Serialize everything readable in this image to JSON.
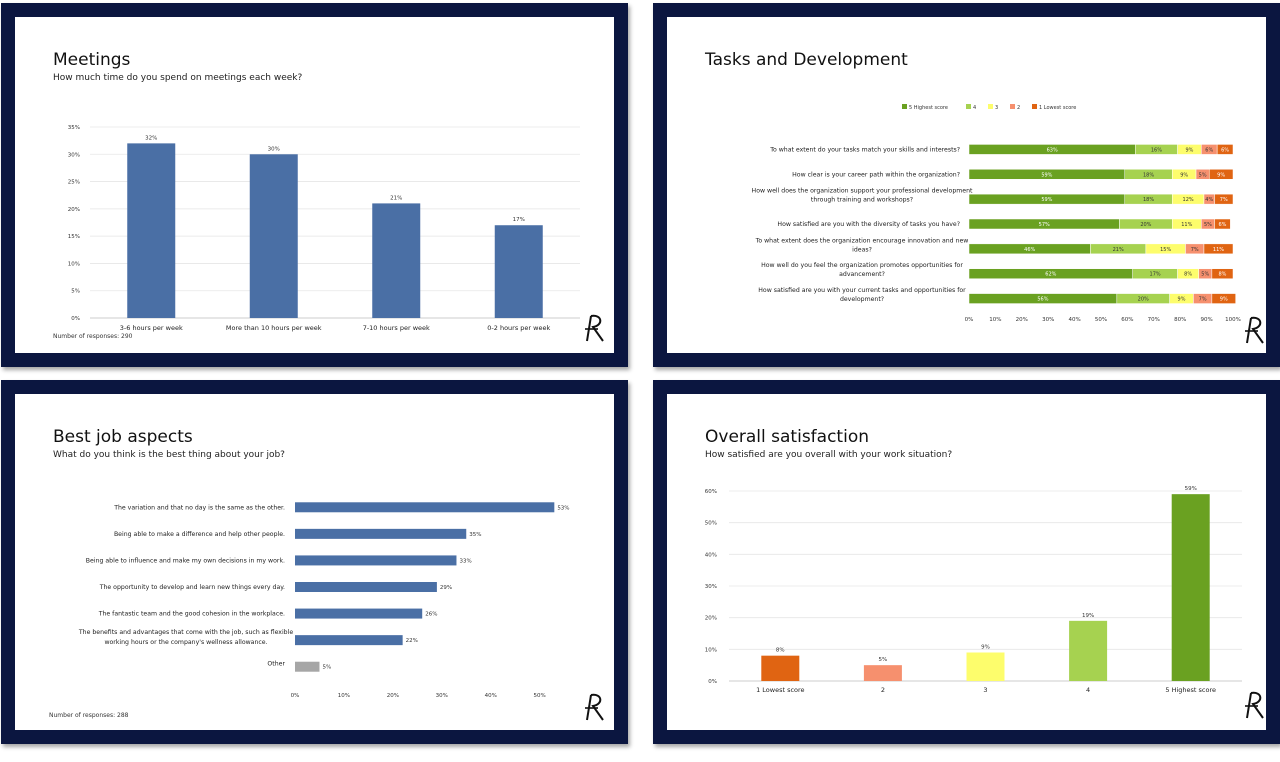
{
  "colors": {
    "navy": "#0b1640",
    "bar_blue": "#4a6fa5",
    "other_gray": "#a6a6a6",
    "score5": "#6aa121",
    "score4": "#a6d250",
    "score3": "#fdfd6c",
    "score2": "#f6906e",
    "score1": "#e06412"
  },
  "logo_icon": "ar-monogram-icon",
  "panels": {
    "meetings": {
      "title": "Meetings",
      "subtitle": "How much time do you spend on meetings each week?",
      "note": "Number of responses: 290"
    },
    "tasks": {
      "title": "Tasks and Development"
    },
    "best": {
      "title": "Best job aspects",
      "subtitle": "What do you think is the best thing about your job?",
      "note": "Number of responses: 288"
    },
    "overall": {
      "title": "Overall satisfaction",
      "subtitle": "How satisfied are you overall with your work situation?"
    }
  },
  "chart_data": [
    {
      "id": "meetings",
      "type": "bar",
      "title": "Meetings",
      "categories": [
        "3-6 hours per week",
        "More than 10 hours per week",
        "7-10 hours per week",
        "0-2 hours per week"
      ],
      "values": [
        32,
        30,
        21,
        17
      ],
      "labels": [
        "32%",
        "30%",
        "21%",
        "17%"
      ],
      "yticks": [
        "0%",
        "5%",
        "10%",
        "15%",
        "20%",
        "25%",
        "30%",
        "35%"
      ],
      "ylim": [
        0,
        35
      ],
      "grid": true
    },
    {
      "id": "tasks",
      "type": "bar",
      "orientation": "horizontal-stacked",
      "title": "Tasks and Development",
      "legend_position": "top",
      "series": [
        {
          "name": "5 Highest score",
          "values": [
            63,
            59,
            59,
            57,
            46,
            62,
            56
          ]
        },
        {
          "name": "4",
          "values": [
            16,
            18,
            18,
            20,
            21,
            17,
            20
          ]
        },
        {
          "name": "3",
          "values": [
            9,
            9,
            12,
            11,
            15,
            8,
            9
          ]
        },
        {
          "name": "2",
          "values": [
            6,
            5,
            4,
            5,
            7,
            5,
            7
          ]
        },
        {
          "name": "1 Lowest score",
          "values": [
            6,
            9,
            7,
            6,
            11,
            8,
            9
          ]
        }
      ],
      "categories": [
        [
          "To what extent do your tasks match your skills and interests?"
        ],
        [
          "How clear is your career path within the organization?"
        ],
        [
          "How well does the organization support your professional development",
          "through training and workshops?"
        ],
        [
          "How satisfied are you with the diversity of tasks you have?"
        ],
        [
          "To what extent does the organization encourage innovation and new",
          "ideas?"
        ],
        [
          "How well do you feel the organization promotes opportunities for",
          "advancement?"
        ],
        [
          "How satisfied are you with your current tasks and opportunities for",
          "development?"
        ]
      ],
      "xticks": [
        "0%",
        "10%",
        "20%",
        "30%",
        "40%",
        "50%",
        "60%",
        "70%",
        "80%",
        "90%",
        "100%"
      ],
      "xlim": [
        0,
        100
      ]
    },
    {
      "id": "best",
      "type": "bar",
      "orientation": "horizontal",
      "title": "Best job aspects",
      "categories": [
        [
          "The variation and that no day is the same as the other."
        ],
        [
          "Being able to make a difference and help other people."
        ],
        [
          "Being able to influence and make my own decisions in my work."
        ],
        [
          "The opportunity to develop and learn new things every day."
        ],
        [
          "The fantastic team and the good cohesion in the workplace."
        ],
        [
          "The benefits and advantages that come with the job, such as flexible",
          "working hours or the company's wellness allowance."
        ],
        [
          "Other"
        ]
      ],
      "values": [
        53,
        35,
        33,
        29,
        26,
        22,
        5
      ],
      "labels": [
        "53%",
        "35%",
        "33%",
        "29%",
        "26%",
        "22%",
        "5%"
      ],
      "xticks": [
        "0%",
        "10%",
        "20%",
        "30%",
        "40%",
        "50%"
      ],
      "xlim": [
        0,
        56
      ]
    },
    {
      "id": "overall",
      "type": "bar",
      "title": "Overall satisfaction",
      "categories": [
        "1 Lowest score",
        "2",
        "3",
        "4",
        "5 Highest score"
      ],
      "values": [
        8,
        5,
        9,
        19,
        59
      ],
      "labels": [
        "8%",
        "5%",
        "9%",
        "19%",
        "59%"
      ],
      "yticks": [
        "0%",
        "10%",
        "20%",
        "30%",
        "40%",
        "50%",
        "60%"
      ],
      "ylim": [
        0,
        60
      ],
      "grid": true
    }
  ]
}
